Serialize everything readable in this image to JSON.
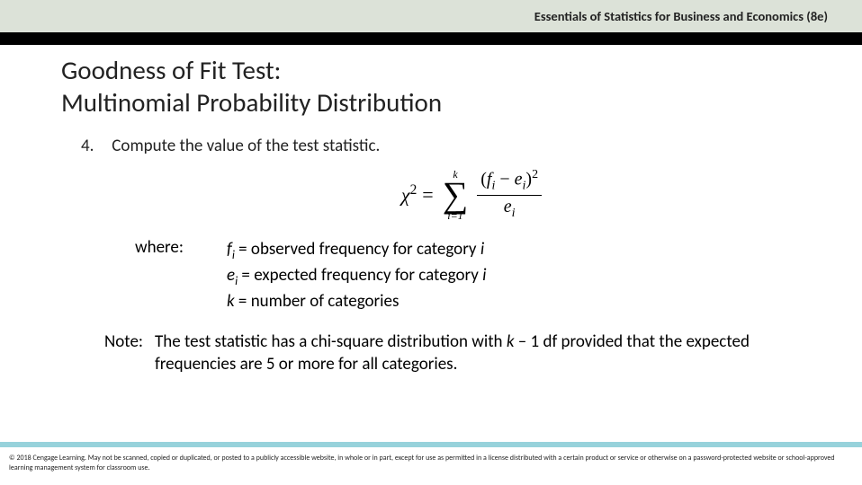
{
  "colors": {
    "header_bg": "#dce2d8",
    "black_band": "#000000",
    "aqua_band": "#97d2db",
    "page_bg": "#ffffff",
    "text": "#222222"
  },
  "header": {
    "book_title": "Essentials of Statistics for Business and Economics (8e)"
  },
  "title": {
    "line1": "Goodness of Fit Test:",
    "line2": "Multinomial Probability Distribution"
  },
  "step": {
    "number": "4.",
    "text": "Compute the value of the test statistic."
  },
  "formula": {
    "lhs_symbol": "χ",
    "lhs_exponent": "2",
    "equals": "=",
    "sum_upper": "k",
    "sum_symbol": "∑",
    "sum_lower": "i=1",
    "num_open": "(",
    "num_fi_sym": "f",
    "num_fi_sub": "i",
    "num_minus": " − ",
    "num_ei_sym": "e",
    "num_ei_sub": "i",
    "num_close": ")",
    "num_exp": "2",
    "den_sym": "e",
    "den_sub": "i"
  },
  "where": {
    "label": "where:",
    "fi_sym": "f",
    "fi_sub": "i",
    "fi_def": " = observed frequency for category ",
    "fi_cat": "i",
    "ei_sym": "e",
    "ei_sub": "i",
    "ei_def": " = expected frequency for category ",
    "ei_cat": "i",
    "k_sym": "k",
    "k_def": " = number of categories"
  },
  "note": {
    "label": "Note:",
    "text_pre": "The test statistic has a chi-square distribution with ",
    "k": "k",
    "minus1": " – 1 df provided that the expected frequencies are 5 or more for all categories."
  },
  "footer": {
    "copyright": "© 2018 Cengage Learning. May not be scanned, copied or duplicated, or posted to a publicly accessible website, in whole or in part, except for use as permitted in a license distributed with a certain product or service or otherwise on a password-protected website or school-approved learning management system for classroom use."
  }
}
